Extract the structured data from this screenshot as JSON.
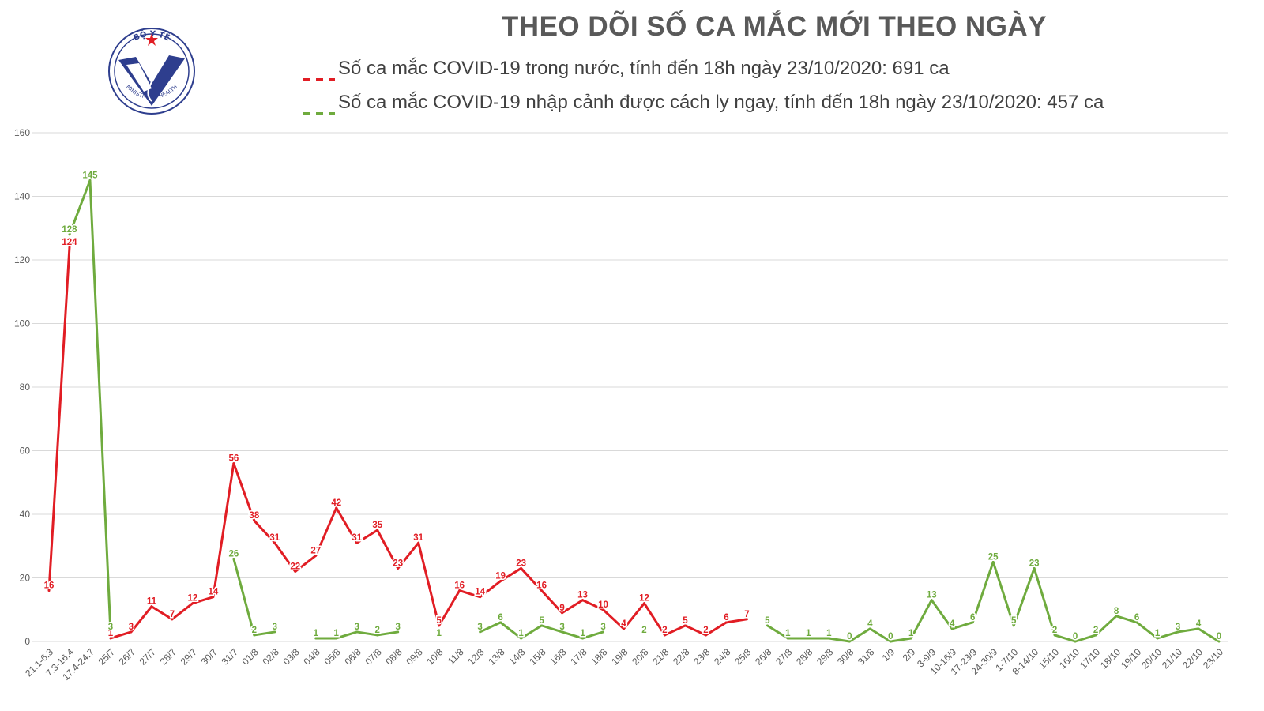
{
  "colors": {
    "domestic": "#e11d24",
    "imported": "#6fab3e",
    "grid": "#d9d9d9",
    "title": "#595959",
    "logo": "#2e3e8e"
  },
  "logo": {
    "top_text": "BỘ Y TẾ",
    "bottom_text": "MINISTRY OF HEALTH"
  },
  "chart_data": {
    "type": "line",
    "title": "THEO DÕI SỐ CA MẮC MỚI THEO NGÀY",
    "xlabel": "",
    "ylabel": "",
    "ylim": [
      0,
      160
    ],
    "yticks": [
      0,
      20,
      40,
      60,
      80,
      100,
      120,
      140,
      160
    ],
    "grid": true,
    "legend_position": "top",
    "categories": [
      "21.1-6.3",
      "7.3-16.4",
      "17.4-24.7",
      "25/7",
      "26/7",
      "27/7",
      "28/7",
      "29/7",
      "30/7",
      "31/7",
      "01/8",
      "02/8",
      "03/8",
      "04/8",
      "05/8",
      "06/8",
      "07/8",
      "08/8",
      "09/8",
      "10/8",
      "11/8",
      "12/8",
      "13/8",
      "14/8",
      "15/8",
      "16/8",
      "17/8",
      "18/8",
      "19/8",
      "20/8",
      "21/8",
      "22/8",
      "23/8",
      "24/8",
      "25/8",
      "26/8",
      "27/8",
      "28/8",
      "29/8",
      "30/8",
      "31/8",
      "1/9",
      "2/9",
      "3-9/9",
      "10-16/9",
      "17-23/9",
      "24-30/9",
      "1-7/10",
      "8-14/10",
      "15/10",
      "16/10",
      "17/10",
      "18/10",
      "19/10",
      "20/10",
      "21/10",
      "22/10",
      "23/10"
    ],
    "series": [
      {
        "name": "Số ca mắc COVID-19 trong nước, tính đến 18h ngày 23/10/2020: 691 ca",
        "color": "#e11d24",
        "values": [
          16,
          124,
          null,
          1,
          3,
          11,
          7,
          12,
          14,
          56,
          38,
          31,
          22,
          27,
          42,
          31,
          35,
          23,
          31,
          5,
          16,
          14,
          19,
          23,
          16,
          9,
          13,
          10,
          4,
          12,
          2,
          5,
          2,
          6,
          7,
          null,
          1,
          1,
          1,
          null,
          null,
          null,
          1,
          null,
          null,
          null,
          null,
          null,
          null,
          null,
          null,
          null,
          null,
          null,
          null,
          null,
          null,
          null
        ]
      },
      {
        "name": "Số ca mắc COVID-19 nhập cảnh được cách ly ngay, tính đến 18h ngày 23/10/2020: 457 ca",
        "color": "#6fab3e",
        "values": [
          null,
          128,
          145,
          3,
          null,
          null,
          null,
          null,
          null,
          26,
          2,
          3,
          null,
          1,
          1,
          3,
          2,
          3,
          null,
          1,
          null,
          3,
          6,
          1,
          5,
          3,
          1,
          3,
          null,
          2,
          null,
          null,
          null,
          null,
          null,
          5,
          1,
          1,
          1,
          0,
          4,
          0,
          1,
          13,
          4,
          6,
          25,
          5,
          23,
          2,
          0,
          2,
          8,
          6,
          1,
          3,
          4,
          0
        ]
      }
    ]
  }
}
